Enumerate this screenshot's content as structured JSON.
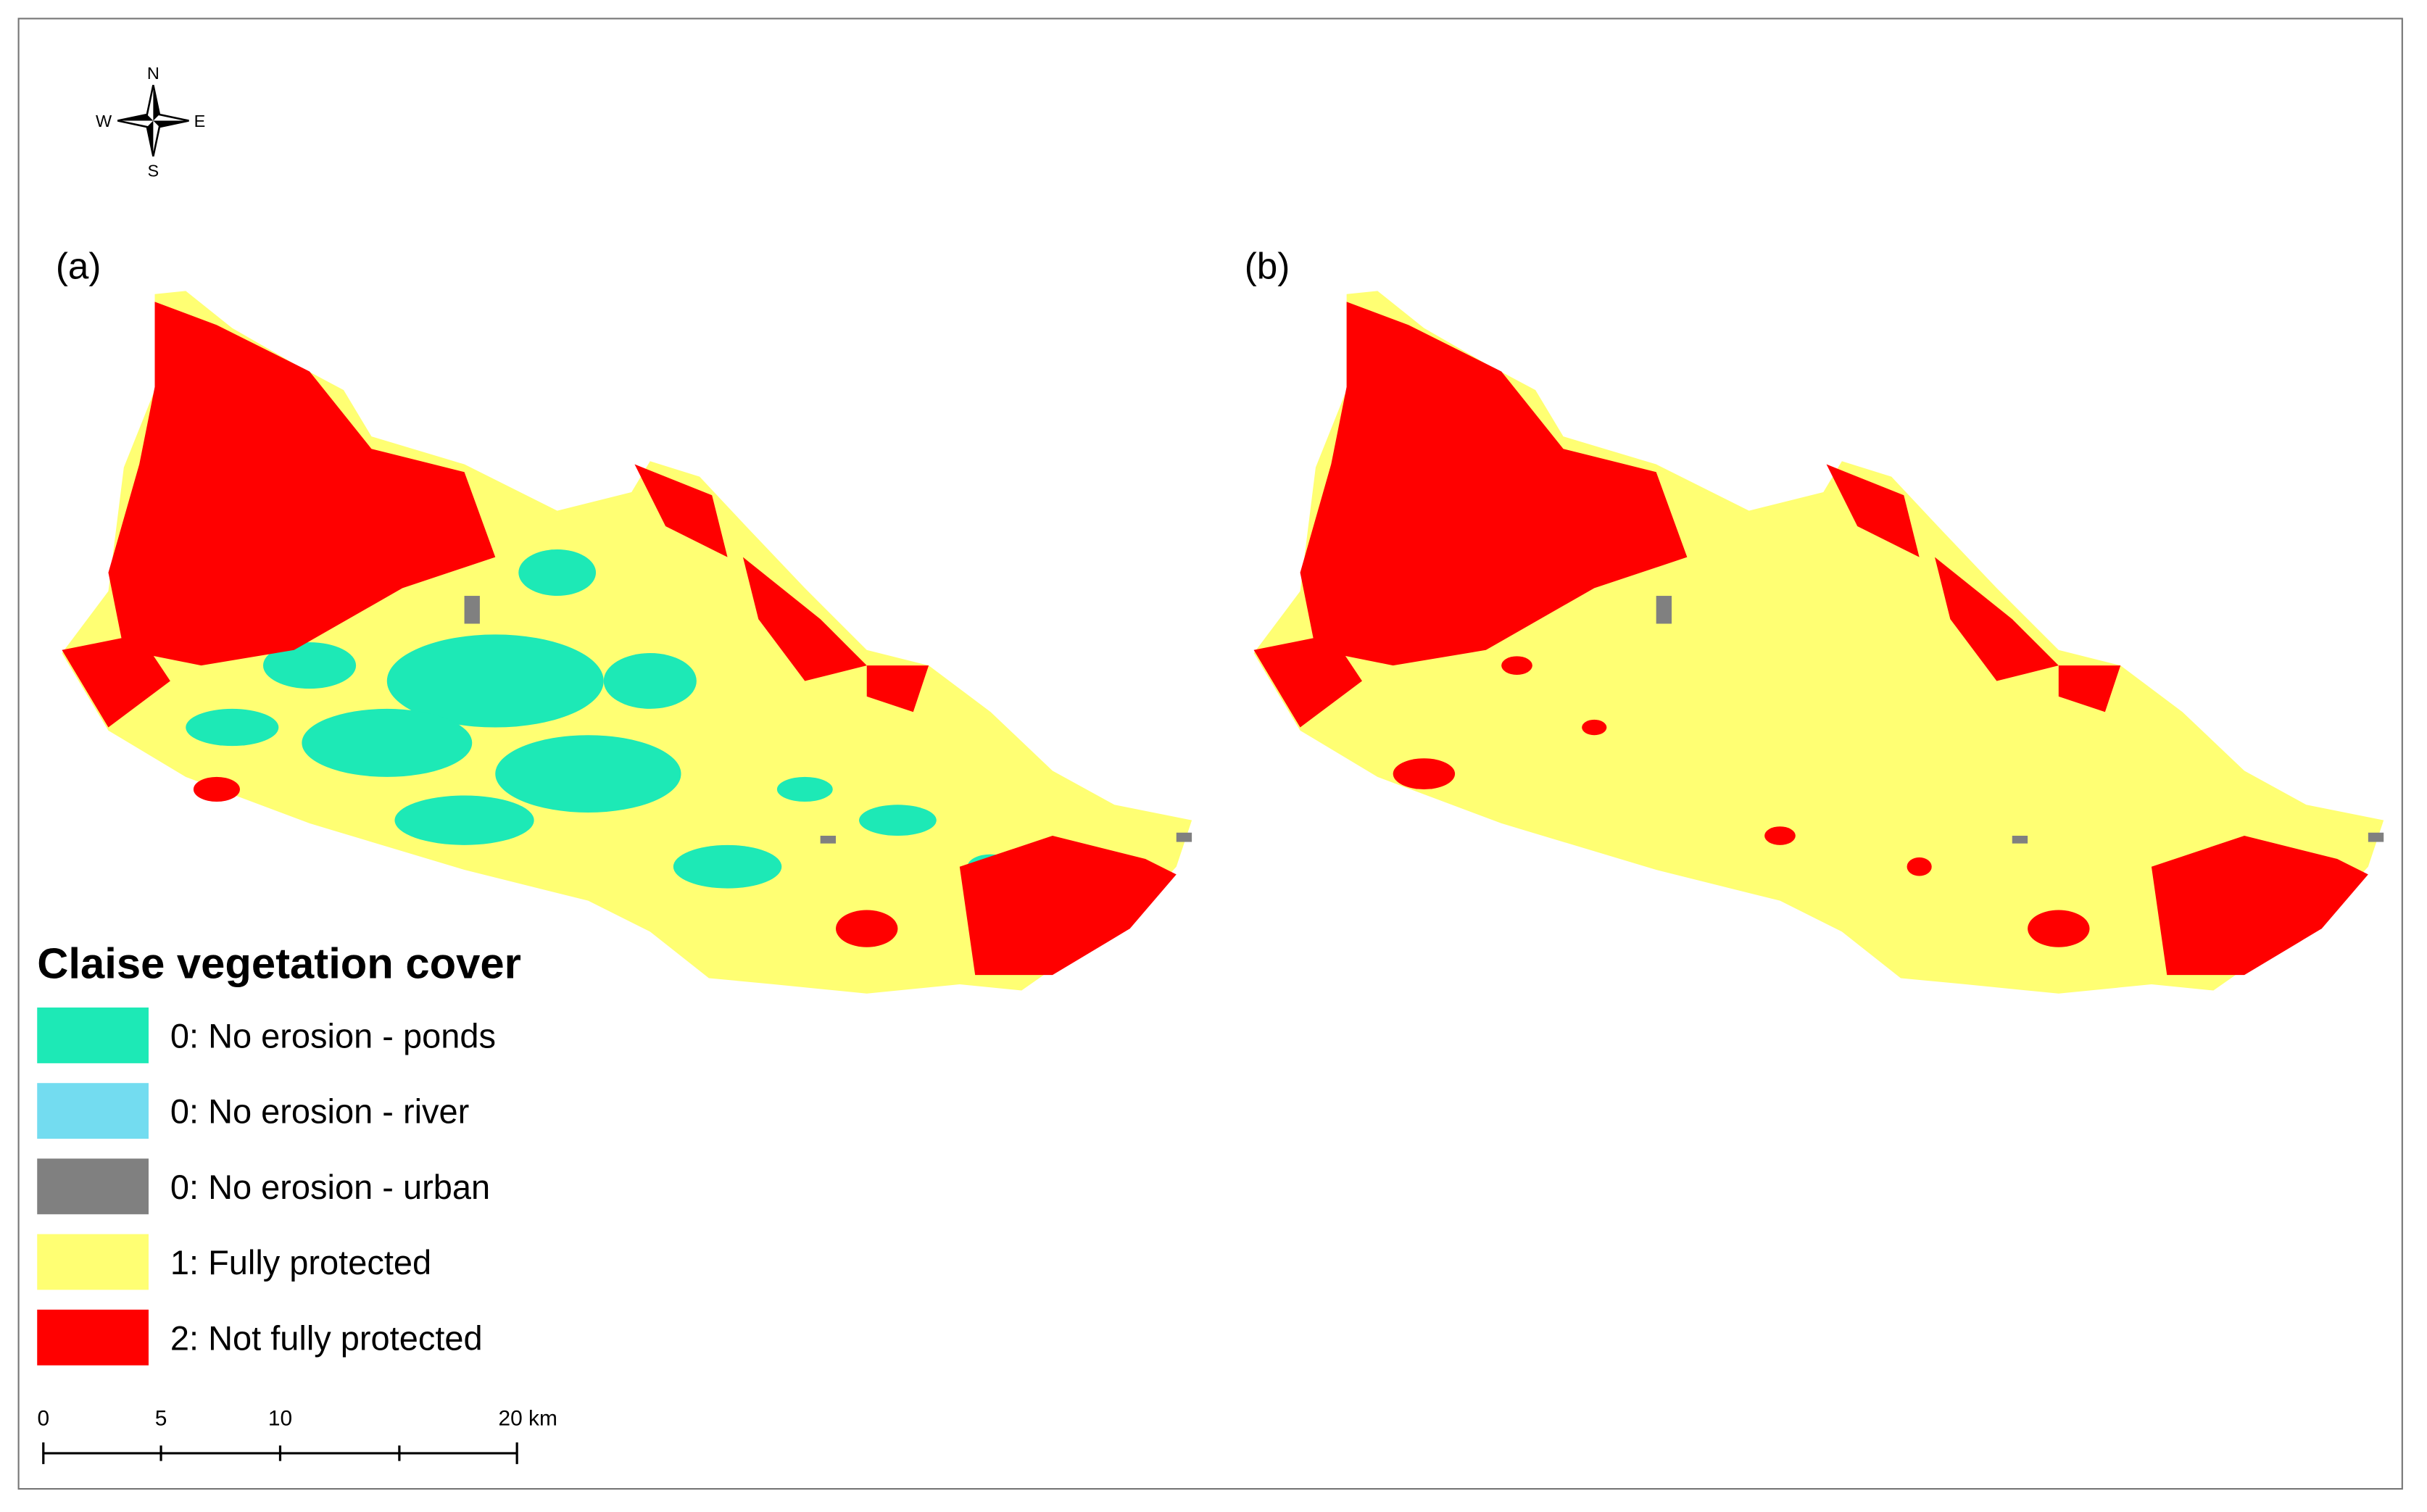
{
  "compass": {
    "north": "N",
    "south": "S",
    "west": "W",
    "east": "E"
  },
  "panels": [
    {
      "label": "(a)"
    },
    {
      "label": "(b)"
    }
  ],
  "legend": {
    "title": "Claise vegetation cover",
    "items": [
      {
        "label": "0: No erosion - ponds",
        "color": "#1de9b6"
      },
      {
        "label": "0: No erosion - river",
        "color": "#73dcf0"
      },
      {
        "label": "0: No erosion - urban",
        "color": "#808080"
      },
      {
        "label": "1: Fully protected",
        "color": "#ffff73"
      },
      {
        "label": "2: Not fully protected",
        "color": "#ff0000"
      }
    ]
  },
  "scale_bar": {
    "labels": [
      "0",
      "5",
      "10",
      "20 km"
    ]
  }
}
